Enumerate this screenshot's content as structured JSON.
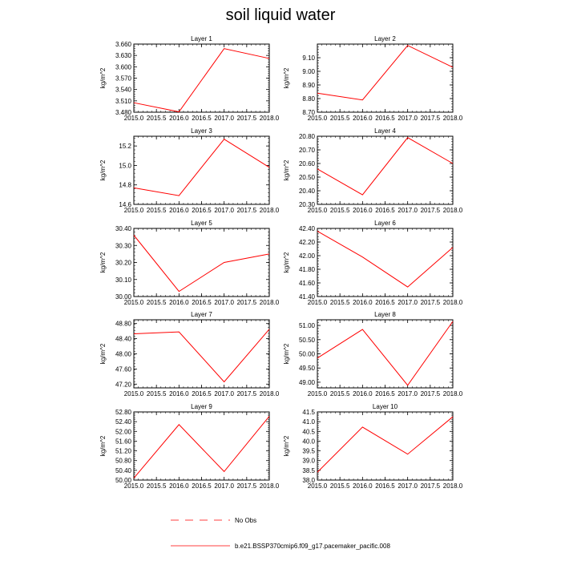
{
  "figure": {
    "title": "soil liquid water"
  },
  "legend": {
    "items": [
      {
        "label": "No Obs",
        "style": "dashed",
        "color": "#ff0000"
      },
      {
        "label": "b.e21.BSSP370cmip6.f09_g17.pacemaker_pacific.008",
        "style": "solid",
        "color": "#ff0000"
      }
    ]
  },
  "chart_data": [
    {
      "type": "line",
      "title": "Layer 1",
      "xlabel": "",
      "ylabel": "kg/m^2",
      "x": [
        2015.0,
        2016.0,
        2017.0,
        2018.0
      ],
      "series": [
        {
          "name": "b.e21.BSSP370cmip6.f09_g17.pacemaker_pacific.008",
          "color": "#ff0000",
          "values": [
            3.505,
            3.481,
            3.648,
            3.622
          ]
        }
      ],
      "xlim": [
        2015.0,
        2018.0
      ],
      "ylim": [
        3.48,
        3.66
      ],
      "xticks": [
        "2015.0",
        "2015.5",
        "2016.0",
        "2016.5",
        "2017.0",
        "2017.5",
        "2018.0"
      ],
      "yticks": [
        "3.480",
        "3.510",
        "3.540",
        "3.570",
        "3.600",
        "3.630",
        "3.660"
      ],
      "grid": false
    },
    {
      "type": "line",
      "title": "Layer 2",
      "xlabel": "",
      "ylabel": "kg/m^2",
      "x": [
        2015.0,
        2016.0,
        2017.0,
        2018.0
      ],
      "series": [
        {
          "name": "b.e21.BSSP370cmip6.f09_g17.pacemaker_pacific.008",
          "color": "#ff0000",
          "values": [
            8.84,
            8.79,
            9.19,
            9.03
          ]
        }
      ],
      "xlim": [
        2015.0,
        2018.0
      ],
      "ylim": [
        8.7,
        9.2
      ],
      "xticks": [
        "2015.0",
        "2015.5",
        "2016.0",
        "2016.5",
        "2017.0",
        "2017.5",
        "2018.0"
      ],
      "yticks": [
        "8.70",
        "8.80",
        "8.90",
        "9.00",
        "9.10"
      ],
      "grid": false
    },
    {
      "type": "line",
      "title": "Layer 3",
      "xlabel": "",
      "ylabel": "kg/m^2",
      "x": [
        2015.0,
        2016.0,
        2017.0,
        2018.0
      ],
      "series": [
        {
          "name": "b.e21.BSSP370cmip6.f09_g17.pacemaker_pacific.008",
          "color": "#ff0000",
          "values": [
            14.77,
            14.69,
            15.27,
            14.98
          ]
        }
      ],
      "xlim": [
        2015.0,
        2018.0
      ],
      "ylim": [
        14.6,
        15.3
      ],
      "xticks": [
        "2015.0",
        "2015.5",
        "2016.0",
        "2016.5",
        "2017.0",
        "2017.5",
        "2018.0"
      ],
      "yticks": [
        "14.6",
        "14.8",
        "15.0",
        "15.2"
      ],
      "grid": false
    },
    {
      "type": "line",
      "title": "Layer 4",
      "xlabel": "",
      "ylabel": "kg/m^2",
      "x": [
        2015.0,
        2016.0,
        2017.0,
        2018.0
      ],
      "series": [
        {
          "name": "b.e21.BSSP370cmip6.f09_g17.pacemaker_pacific.008",
          "color": "#ff0000",
          "values": [
            20.56,
            20.37,
            20.79,
            20.6
          ]
        }
      ],
      "xlim": [
        2015.0,
        2018.0
      ],
      "ylim": [
        20.3,
        20.8
      ],
      "xticks": [
        "2015.0",
        "2015.5",
        "2016.0",
        "2016.5",
        "2017.0",
        "2017.5",
        "2018.0"
      ],
      "yticks": [
        "20.30",
        "20.40",
        "20.50",
        "20.60",
        "20.70",
        "20.80"
      ],
      "grid": false
    },
    {
      "type": "line",
      "title": "Layer 5",
      "xlabel": "",
      "ylabel": "kg/m^2",
      "x": [
        2015.0,
        2016.0,
        2017.0,
        2018.0
      ],
      "series": [
        {
          "name": "b.e21.BSSP370cmip6.f09_g17.pacemaker_pacific.008",
          "color": "#ff0000",
          "values": [
            30.36,
            30.03,
            30.2,
            30.25
          ]
        }
      ],
      "xlim": [
        2015.0,
        2018.0
      ],
      "ylim": [
        30.0,
        30.4
      ],
      "xticks": [
        "2015.0",
        "2015.5",
        "2016.0",
        "2016.5",
        "2017.0",
        "2017.5",
        "2018.0"
      ],
      "yticks": [
        "30.00",
        "30.10",
        "30.20",
        "30.30",
        "30.40"
      ],
      "grid": false
    },
    {
      "type": "line",
      "title": "Layer 6",
      "xlabel": "",
      "ylabel": "kg/m^2",
      "x": [
        2015.0,
        2016.0,
        2017.0,
        2018.0
      ],
      "series": [
        {
          "name": "b.e21.BSSP370cmip6.f09_g17.pacemaker_pacific.008",
          "color": "#ff0000",
          "values": [
            42.36,
            41.98,
            41.54,
            42.12
          ]
        }
      ],
      "xlim": [
        2015.0,
        2018.0
      ],
      "ylim": [
        41.4,
        42.4
      ],
      "xticks": [
        "2015.0",
        "2015.5",
        "2016.0",
        "2016.5",
        "2017.0",
        "2017.5",
        "2018.0"
      ],
      "yticks": [
        "41.40",
        "41.60",
        "41.80",
        "42.00",
        "42.20",
        "42.40"
      ],
      "grid": false
    },
    {
      "type": "line",
      "title": "Layer 7",
      "xlabel": "",
      "ylabel": "kg/m^2",
      "x": [
        2015.0,
        2016.0,
        2017.0,
        2018.0
      ],
      "series": [
        {
          "name": "b.e21.BSSP370cmip6.f09_g17.pacemaker_pacific.008",
          "color": "#ff0000",
          "values": [
            48.53,
            48.58,
            47.26,
            48.65
          ]
        }
      ],
      "xlim": [
        2015.0,
        2018.0
      ],
      "ylim": [
        47.1,
        48.9
      ],
      "xticks": [
        "2015.0",
        "2015.5",
        "2016.0",
        "2016.5",
        "2017.0",
        "2017.5",
        "2018.0"
      ],
      "yticks": [
        "47.20",
        "47.60",
        "48.00",
        "48.40",
        "48.80"
      ],
      "grid": false
    },
    {
      "type": "line",
      "title": "Layer 8",
      "xlabel": "",
      "ylabel": "kg/m^2",
      "x": [
        2015.0,
        2016.0,
        2017.0,
        2018.0
      ],
      "series": [
        {
          "name": "b.e21.BSSP370cmip6.f09_g17.pacemaker_pacific.008",
          "color": "#ff0000",
          "values": [
            49.85,
            50.86,
            48.89,
            51.14
          ]
        }
      ],
      "xlim": [
        2015.0,
        2018.0
      ],
      "ylim": [
        48.8,
        51.2
      ],
      "xticks": [
        "2015.0",
        "2015.5",
        "2016.0",
        "2016.5",
        "2017.0",
        "2017.5",
        "2018.0"
      ],
      "yticks": [
        "49.00",
        "49.50",
        "50.00",
        "50.50",
        "51.00"
      ],
      "grid": false
    },
    {
      "type": "line",
      "title": "Layer 9",
      "xlabel": "",
      "ylabel": "kg/m^2",
      "x": [
        2015.0,
        2016.0,
        2017.0,
        2018.0
      ],
      "series": [
        {
          "name": "b.e21.BSSP370cmip6.f09_g17.pacemaker_pacific.008",
          "color": "#ff0000",
          "values": [
            50.08,
            52.28,
            50.35,
            52.62
          ]
        }
      ],
      "xlim": [
        2015.0,
        2018.0
      ],
      "ylim": [
        50.0,
        52.8
      ],
      "xticks": [
        "2015.0",
        "2015.5",
        "2016.0",
        "2016.5",
        "2017.0",
        "2017.5",
        "2018.0"
      ],
      "yticks": [
        "50.00",
        "50.40",
        "50.80",
        "51.20",
        "51.60",
        "52.00",
        "52.40",
        "52.80"
      ],
      "grid": false
    },
    {
      "type": "line",
      "title": "Layer 10",
      "xlabel": "",
      "ylabel": "kg/m^2",
      "x": [
        2015.0,
        2016.0,
        2017.0,
        2018.0
      ],
      "series": [
        {
          "name": "b.e21.BSSP370cmip6.f09_g17.pacemaker_pacific.008",
          "color": "#ff0000",
          "values": [
            38.4,
            40.72,
            39.33,
            41.25
          ]
        }
      ],
      "xlim": [
        2015.0,
        2018.0
      ],
      "ylim": [
        38.0,
        41.5
      ],
      "xticks": [
        "2015.0",
        "2015.5",
        "2016.0",
        "2016.5",
        "2017.0",
        "2017.5",
        "2018.0"
      ],
      "yticks": [
        "38.0",
        "38.5",
        "39.0",
        "39.5",
        "40.0",
        "40.5",
        "41.0",
        "41.5"
      ],
      "grid": false
    }
  ]
}
